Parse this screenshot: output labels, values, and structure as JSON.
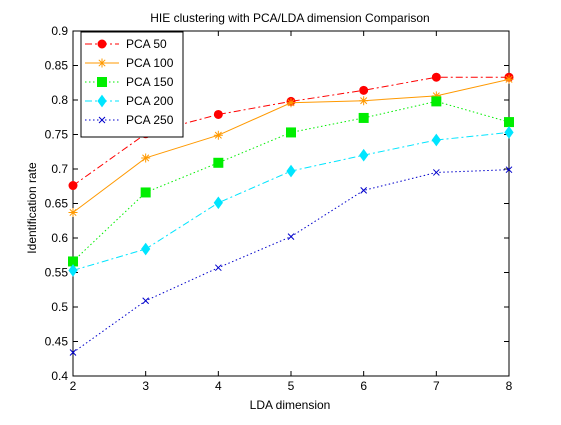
{
  "chart_data": {
    "type": "line",
    "title": "HIE clustering with PCA/LDA dimension Comparison",
    "xlabel": "LDA dimension",
    "ylabel": "Identification rate",
    "xlim": [
      2,
      8
    ],
    "ylim": [
      0.4,
      0.9
    ],
    "x_ticks": [
      "2",
      "3",
      "4",
      "5",
      "6",
      "7",
      "8"
    ],
    "y_ticks": [
      "0.4",
      "0.45",
      "0.5",
      "0.55",
      "0.6",
      "0.65",
      "0.7",
      "0.75",
      "0.8",
      "0.85",
      "0.9"
    ],
    "grid": false,
    "legend_position": "top-left",
    "x": [
      2,
      3,
      4,
      5,
      6,
      7,
      8
    ],
    "series": [
      {
        "name": "PCA 50",
        "color": "#ff0000",
        "dash": "dashdot",
        "marker": "circle",
        "values": [
          0.676,
          0.751,
          0.779,
          0.798,
          0.814,
          0.833,
          0.833
        ]
      },
      {
        "name": "PCA 100",
        "color": "#ff9900",
        "dash": "solid",
        "marker": "star",
        "values": [
          0.637,
          0.716,
          0.749,
          0.796,
          0.799,
          0.806,
          0.83
        ]
      },
      {
        "name": "PCA 150",
        "color": "#00ee00",
        "dash": "dotted",
        "marker": "square",
        "values": [
          0.566,
          0.666,
          0.709,
          0.753,
          0.774,
          0.798,
          0.768
        ]
      },
      {
        "name": "PCA 200",
        "color": "#00e5ff",
        "dash": "dashdot",
        "marker": "diamond",
        "values": [
          0.553,
          0.584,
          0.651,
          0.697,
          0.72,
          0.742,
          0.753
        ]
      },
      {
        "name": "PCA 250",
        "color": "#0000cc",
        "dash": "dotted",
        "marker": "x",
        "values": [
          0.434,
          0.509,
          0.557,
          0.602,
          0.669,
          0.695,
          0.699
        ]
      }
    ]
  }
}
